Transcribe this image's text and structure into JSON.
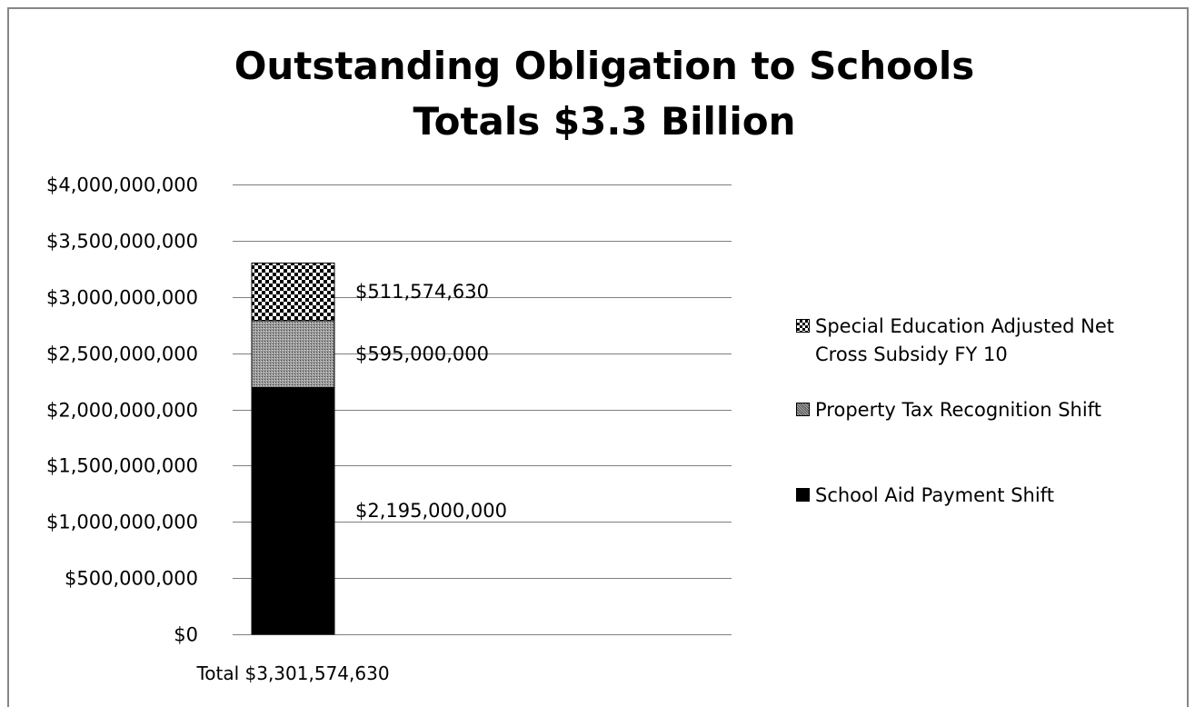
{
  "chart_data": {
    "type": "bar",
    "stacked": true,
    "title": [
      "Outstanding Obligation to Schools",
      "Totals $3.3 Billion"
    ],
    "categories": [
      "Total $3,301,574,630"
    ],
    "ylim": [
      0,
      4000000000
    ],
    "yticks": [
      {
        "value": 0,
        "label": "$0"
      },
      {
        "value": 500000000,
        "label": "$500,000,000"
      },
      {
        "value": 1000000000,
        "label": "$1,000,000,000"
      },
      {
        "value": 1500000000,
        "label": "$1,500,000,000"
      },
      {
        "value": 2000000000,
        "label": "$2,000,000,000"
      },
      {
        "value": 2500000000,
        "label": "$2,500,000,000"
      },
      {
        "value": 3000000000,
        "label": "$3,000,000,000"
      },
      {
        "value": 3500000000,
        "label": "$3,500,000,000"
      },
      {
        "value": 4000000000,
        "label": "$4,000,000,000"
      }
    ],
    "grid": true,
    "legend_position": "right",
    "series": [
      {
        "name": "School Aid Payment Shift",
        "values": [
          2195000000
        ],
        "data_label": "$2,195,000,000",
        "pattern": "solid-black"
      },
      {
        "name": "Property Tax Recognition Shift",
        "values": [
          595000000
        ],
        "data_label": "$595,000,000",
        "pattern": "fine-gray-dots"
      },
      {
        "name": "Special Education Adjusted Net Cross Subsidy FY 10",
        "values": [
          511574630
        ],
        "data_label": "$511,574,630",
        "pattern": "checkerboard"
      }
    ],
    "legend": [
      {
        "lines": [
          "Special Education Adjusted Net",
          "Cross Subsidy FY 10"
        ],
        "pattern": "checkerboard"
      },
      {
        "lines": [
          "Property Tax Recognition Shift"
        ],
        "pattern": "fine-gray-dots"
      },
      {
        "lines": [
          "School Aid Payment Shift"
        ],
        "pattern": "solid-black"
      }
    ]
  },
  "colors": {
    "grid": "#7f7f7f",
    "bar_solid": "#000000",
    "frame": "#868686"
  }
}
